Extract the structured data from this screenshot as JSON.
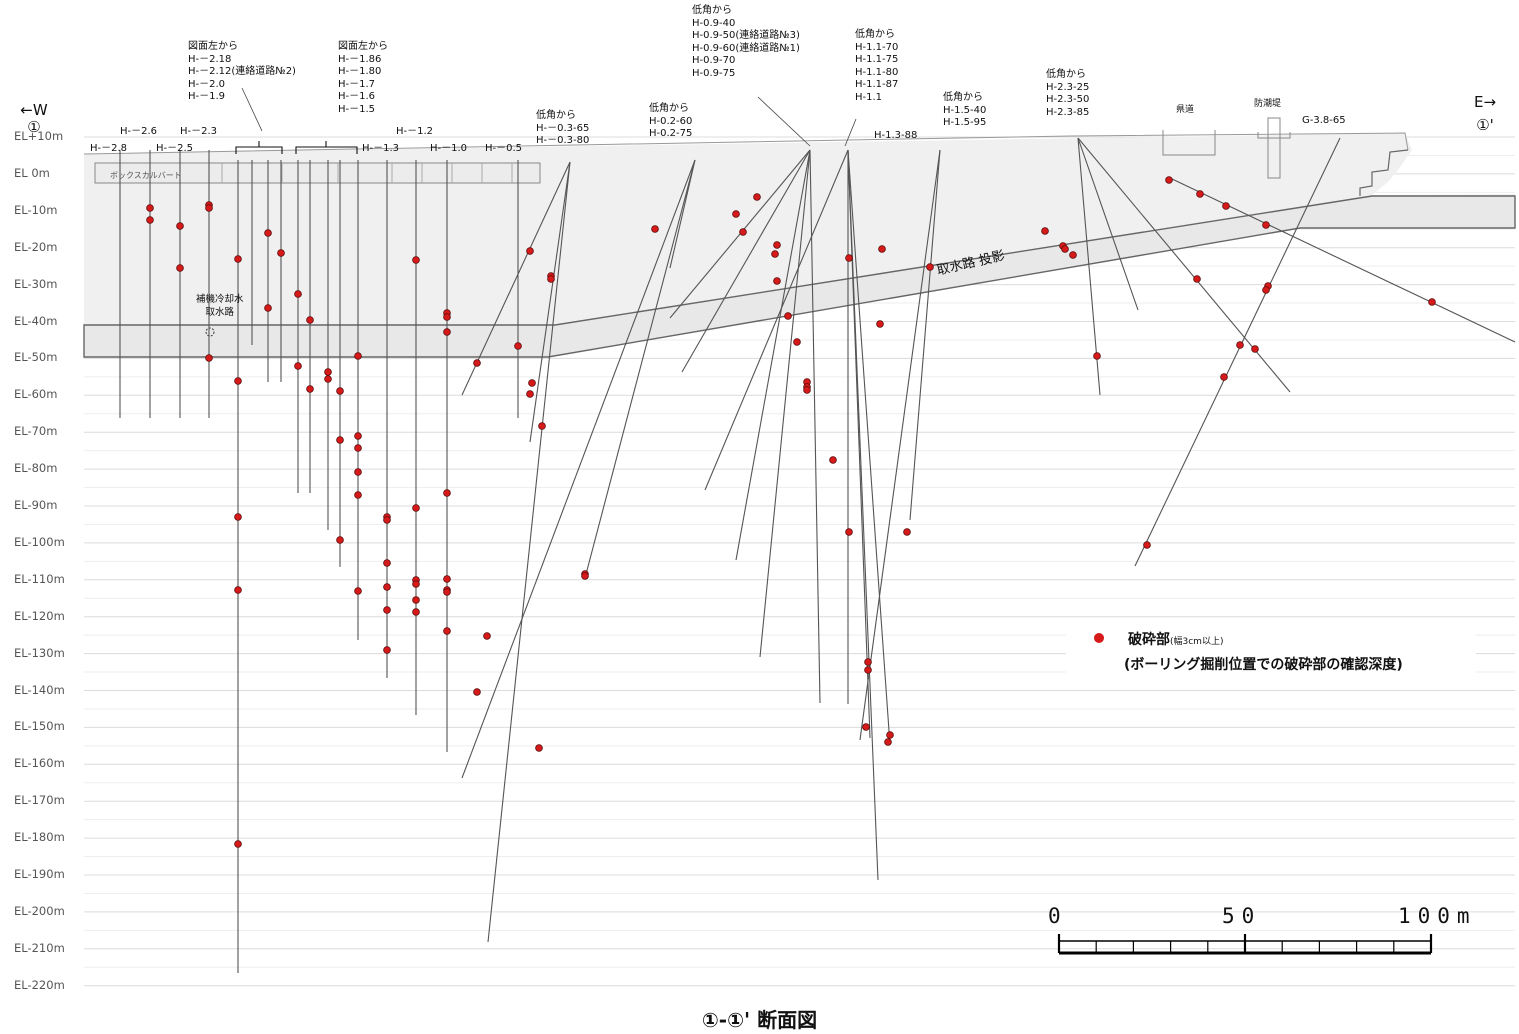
{
  "direction": {
    "west": "←W",
    "west_mark": "①",
    "east": "E→",
    "east_mark": "①'"
  },
  "elevation_labels": [
    "EL+10m",
    "EL  0m",
    "EL-10m",
    "EL-20m",
    "EL-30m",
    "EL-40m",
    "EL-50m",
    "EL-60m",
    "EL-70m",
    "EL-80m",
    "EL-90m",
    "EL-100m",
    "EL-110m",
    "EL-120m",
    "EL-130m",
    "EL-140m",
    "EL-150m",
    "EL-160m",
    "EL-170m",
    "EL-180m",
    "EL-190m",
    "EL-200m",
    "EL-210m",
    "EL-220m"
  ],
  "labels": {
    "g1": "H-－2.6",
    "g2": "H-－2.3",
    "g3": "H-－2.8",
    "g4": "H-－2.5",
    "g5": "図面左から\nH-－2.18\nH-－2.12(連絡道路№2)\nH-－2.0\nH-－1.9",
    "g6": "図面左から\nH-－1.86\nH-－1.80\nH-－1.7\nH-－1.6\nH-－1.5",
    "g7": "H-－1.2",
    "g8": "H-－1.3",
    "g9": "H-－1.0",
    "g10": "H-－0.5",
    "g11": "低角から\nH-－0.3-65\nH-－0.3-80",
    "g12": "低角から\nH-0.2-60\nH-0.2-75",
    "g13": "低角から\nH-0.9-40\nH-0.9-50(連絡道路№3)\nH-0.9-60(連絡道路№1)\nH-0.9-70\nH-0.9-75",
    "g14": "低角から\nH-1.1-70\nH-1.1-75\nH-1.1-80\nH-1.1-87\nH-1.1",
    "g15": "H-1.3-88",
    "g16": "低角から\nH-1.5-40\nH-1.5-95",
    "g17": "低角から\nH-2.3-25\nH-2.3-50\nH-2.3-85",
    "g18": "G-3.8-65",
    "road": "県道",
    "seawall": "防潮堤",
    "box_culvert": "ボックスカルバート",
    "intake_aux": "補機冷却水\n取水路",
    "intake_proj": "取水路 投影"
  },
  "legend": {
    "dot_color": "#d61a1a",
    "title": "破砕部",
    "title_note": "(幅3cm以上)",
    "desc": "(ボーリング掘削位置での破砕部の確認深度)"
  },
  "scale": {
    "ticks": [
      "0",
      "50",
      "100m"
    ]
  },
  "caption": "①-①' 断面図"
}
